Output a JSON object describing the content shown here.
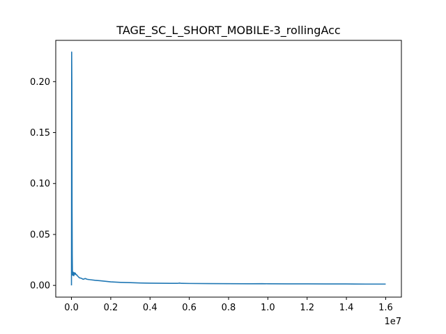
{
  "chart_data": {
    "type": "line",
    "title": "TAGE_SC_L_SHORT_MOBILE-3_rollingAcc",
    "xlabel": "",
    "ylabel": "",
    "x_offset_label": "1e7",
    "xlim": [
      -800000,
      16800000
    ],
    "ylim": [
      -0.0115,
      0.2405
    ],
    "grid": false,
    "legend": "none",
    "line_color": "#1f77b4",
    "x_ticks": [
      {
        "value": 0,
        "label": "0.0"
      },
      {
        "value": 2000000,
        "label": "0.2"
      },
      {
        "value": 4000000,
        "label": "0.4"
      },
      {
        "value": 6000000,
        "label": "0.6"
      },
      {
        "value": 8000000,
        "label": "0.8"
      },
      {
        "value": 10000000,
        "label": "1.0"
      },
      {
        "value": 12000000,
        "label": "1.2"
      },
      {
        "value": 14000000,
        "label": "1.4"
      },
      {
        "value": 16000000,
        "label": "1.6"
      }
    ],
    "y_ticks": [
      {
        "value": 0.0,
        "label": "0.00"
      },
      {
        "value": 0.05,
        "label": "0.05"
      },
      {
        "value": 0.1,
        "label": "0.10"
      },
      {
        "value": 0.15,
        "label": "0.15"
      },
      {
        "value": 0.2,
        "label": "0.20"
      }
    ],
    "series": [
      {
        "x": [
          0,
          10000,
          20000,
          30000,
          40000,
          50000,
          60000,
          70000,
          80000,
          90000,
          100000,
          120000,
          150000,
          180000,
          200000,
          230000,
          260000,
          300000,
          400000,
          500000,
          600000,
          700000,
          800000,
          1000000,
          1200000,
          1500000,
          2000000,
          2500000,
          3000000,
          3500000,
          4000000,
          4500000,
          5000000,
          5400000,
          5500000,
          5600000,
          6000000,
          7000000,
          8000000,
          9000000,
          9700000,
          10000000,
          11000000,
          12000000,
          13000000,
          14000000,
          15000000,
          16000000
        ],
        "y": [
          0.0,
          0.229,
          0.2,
          0.08,
          0.03,
          0.012,
          0.01,
          0.011,
          0.012,
          0.013,
          0.011,
          0.0095,
          0.0125,
          0.011,
          0.012,
          0.0105,
          0.0105,
          0.0095,
          0.0075,
          0.007,
          0.006,
          0.0068,
          0.006,
          0.0055,
          0.005,
          0.0045,
          0.0035,
          0.003,
          0.0027,
          0.0024,
          0.0022,
          0.0021,
          0.002,
          0.002,
          0.0023,
          0.002,
          0.0019,
          0.0018,
          0.0017,
          0.0016,
          0.0017,
          0.0016,
          0.0015,
          0.0015,
          0.0014,
          0.0014,
          0.0013,
          0.0013
        ]
      }
    ]
  }
}
